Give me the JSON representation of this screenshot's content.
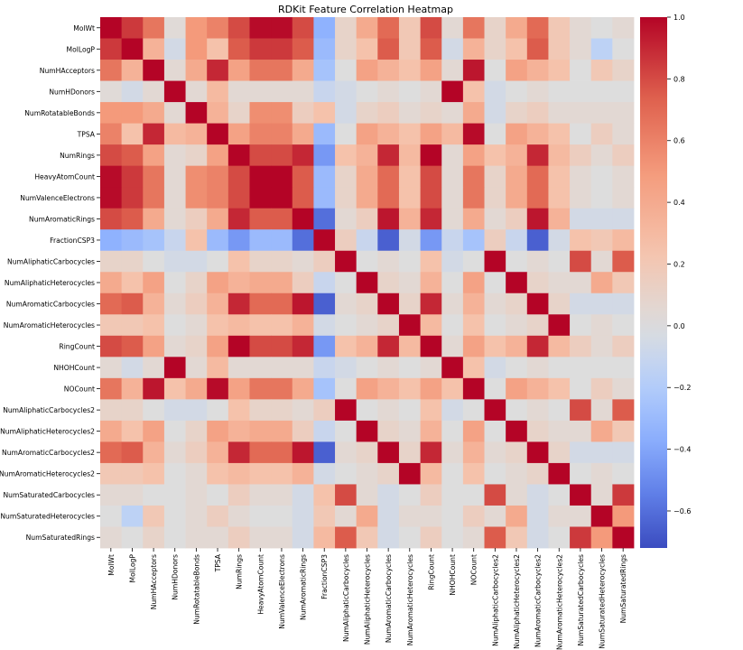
{
  "chart_data": {
    "type": "heatmap",
    "title": "RDKit Feature Correlation Heatmap",
    "colormap": "coolwarm",
    "vmin": -0.72,
    "vmax": 1.0,
    "colorbar_ticks": [
      "1.0",
      "0.8",
      "0.6",
      "0.4",
      "0.2",
      "0.0",
      "−0.2",
      "−0.4",
      "−0.6"
    ],
    "colorbar_tick_values": [
      1.0,
      0.8,
      0.6,
      0.4,
      0.2,
      0.0,
      -0.2,
      -0.4,
      -0.6
    ],
    "labels": [
      "MolWt",
      "MolLogP",
      "NumHAcceptors",
      "NumHDonors",
      "NumRotatableBonds",
      "TPSA",
      "NumRings",
      "HeavyAtomCount",
      "NumValenceElectrons",
      "NumAromaticRings",
      "FractionCSP3",
      "NumAliphaticCarbocycles",
      "NumAliphaticHeterocycles",
      "NumAromaticCarbocycles",
      "NumAromaticHeterocycles",
      "RingCount",
      "NHOHCount",
      "NOCount",
      "NumAliphaticCarbocycles2",
      "NumAliphaticHeterocycles2",
      "NumAromaticCarbocycles2",
      "NumAromaticHeterocycles2",
      "NumSaturatedCarbocycles",
      "NumSaturatedHeterocycles",
      "NumSaturatedRings"
    ],
    "matrix": [
      [
        1.0,
        0.85,
        0.65,
        0.03,
        0.5,
        0.6,
        0.8,
        0.98,
        0.98,
        0.8,
        -0.35,
        0.1,
        0.4,
        0.7,
        0.2,
        0.8,
        0.05,
        0.65,
        0.1,
        0.4,
        0.7,
        0.2,
        0.05,
        0.0,
        0.05
      ],
      [
        0.85,
        1.0,
        0.35,
        -0.05,
        0.5,
        0.25,
        0.75,
        0.85,
        0.85,
        0.75,
        -0.3,
        0.1,
        0.25,
        0.75,
        0.2,
        0.75,
        -0.05,
        0.35,
        0.1,
        0.25,
        0.75,
        0.2,
        0.05,
        -0.15,
        0.0
      ],
      [
        0.65,
        0.35,
        1.0,
        0.05,
        0.4,
        0.9,
        0.45,
        0.65,
        0.65,
        0.4,
        -0.25,
        0.0,
        0.45,
        0.35,
        0.25,
        0.45,
        0.05,
        0.95,
        0.0,
        0.45,
        0.35,
        0.25,
        0.0,
        0.2,
        0.1
      ],
      [
        0.03,
        -0.05,
        0.05,
        1.0,
        0.05,
        0.3,
        0.05,
        0.05,
        0.05,
        0.05,
        -0.1,
        -0.05,
        0.0,
        0.05,
        0.0,
        0.05,
        1.0,
        0.25,
        -0.05,
        0.0,
        0.05,
        0.0,
        0.0,
        0.0,
        0.0
      ],
      [
        0.5,
        0.5,
        0.4,
        0.05,
        1.0,
        0.35,
        0.1,
        0.55,
        0.55,
        0.15,
        0.25,
        -0.05,
        0.1,
        0.15,
        0.05,
        0.1,
        0.05,
        0.4,
        -0.05,
        0.1,
        0.15,
        0.05,
        0.05,
        0.05,
        0.05
      ],
      [
        0.6,
        0.25,
        0.9,
        0.3,
        0.35,
        1.0,
        0.45,
        0.6,
        0.6,
        0.4,
        -0.3,
        0.0,
        0.45,
        0.35,
        0.25,
        0.45,
        0.3,
        0.98,
        0.0,
        0.45,
        0.35,
        0.25,
        0.0,
        0.15,
        0.05
      ],
      [
        0.8,
        0.75,
        0.45,
        0.05,
        0.1,
        0.45,
        1.0,
        0.8,
        0.8,
        0.9,
        -0.45,
        0.25,
        0.35,
        0.9,
        0.3,
        1.0,
        0.05,
        0.45,
        0.25,
        0.35,
        0.9,
        0.3,
        0.15,
        0.05,
        0.15
      ],
      [
        0.98,
        0.85,
        0.65,
        0.05,
        0.55,
        0.6,
        0.8,
        1.0,
        1.0,
        0.75,
        -0.3,
        0.1,
        0.4,
        0.7,
        0.25,
        0.8,
        0.05,
        0.65,
        0.1,
        0.4,
        0.7,
        0.25,
        0.05,
        0.0,
        0.05
      ],
      [
        0.98,
        0.85,
        0.65,
        0.05,
        0.55,
        0.6,
        0.8,
        1.0,
        1.0,
        0.75,
        -0.3,
        0.1,
        0.4,
        0.7,
        0.25,
        0.8,
        0.05,
        0.65,
        0.1,
        0.4,
        0.7,
        0.25,
        0.05,
        0.0,
        0.05
      ],
      [
        0.8,
        0.75,
        0.4,
        0.05,
        0.15,
        0.4,
        0.9,
        0.75,
        0.75,
        1.0,
        -0.6,
        0.05,
        0.15,
        0.95,
        0.35,
        0.9,
        0.05,
        0.4,
        0.05,
        0.15,
        0.95,
        0.35,
        -0.05,
        -0.05,
        -0.05
      ],
      [
        -0.35,
        -0.3,
        -0.25,
        -0.1,
        0.25,
        -0.3,
        -0.45,
        -0.3,
        -0.3,
        -0.6,
        1.0,
        0.15,
        -0.1,
        -0.65,
        -0.05,
        -0.45,
        -0.1,
        -0.25,
        0.15,
        -0.1,
        -0.65,
        -0.05,
        0.25,
        0.2,
        0.3
      ],
      [
        0.1,
        0.1,
        0.0,
        -0.05,
        -0.05,
        0.0,
        0.25,
        0.1,
        0.1,
        0.05,
        0.15,
        1.0,
        0.0,
        0.05,
        0.0,
        0.25,
        -0.05,
        0.0,
        1.0,
        0.0,
        0.05,
        0.0,
        0.8,
        0.05,
        0.75
      ],
      [
        0.4,
        0.25,
        0.45,
        0.0,
        0.1,
        0.45,
        0.35,
        0.4,
        0.4,
        0.15,
        -0.1,
        0.0,
        1.0,
        0.1,
        0.05,
        0.35,
        0.0,
        0.45,
        0.0,
        1.0,
        0.1,
        0.05,
        0.05,
        0.4,
        0.2
      ],
      [
        0.7,
        0.75,
        0.35,
        0.05,
        0.15,
        0.35,
        0.9,
        0.7,
        0.7,
        0.95,
        -0.65,
        0.05,
        0.1,
        1.0,
        0.1,
        0.9,
        0.05,
        0.35,
        0.05,
        0.1,
        1.0,
        0.1,
        -0.05,
        -0.05,
        -0.05
      ],
      [
        0.2,
        0.2,
        0.25,
        0.0,
        0.05,
        0.25,
        0.3,
        0.25,
        0.25,
        0.35,
        -0.05,
        0.0,
        0.05,
        0.1,
        1.0,
        0.3,
        0.0,
        0.25,
        0.0,
        0.05,
        0.1,
        1.0,
        0.0,
        0.05,
        0.0
      ],
      [
        0.8,
        0.75,
        0.45,
        0.05,
        0.1,
        0.45,
        1.0,
        0.8,
        0.8,
        0.9,
        -0.45,
        0.25,
        0.35,
        0.9,
        0.3,
        1.0,
        0.05,
        0.45,
        0.25,
        0.35,
        0.9,
        0.3,
        0.15,
        0.05,
        0.15
      ],
      [
        0.05,
        -0.05,
        0.05,
        1.0,
        0.05,
        0.3,
        0.05,
        0.05,
        0.05,
        0.05,
        -0.1,
        -0.05,
        0.0,
        0.05,
        0.0,
        0.05,
        1.0,
        0.25,
        -0.05,
        0.0,
        0.05,
        0.0,
        0.0,
        0.0,
        0.0
      ],
      [
        0.65,
        0.35,
        0.95,
        0.25,
        0.4,
        0.98,
        0.45,
        0.65,
        0.65,
        0.4,
        -0.25,
        0.0,
        0.45,
        0.35,
        0.25,
        0.45,
        0.25,
        1.0,
        0.0,
        0.45,
        0.35,
        0.25,
        0.0,
        0.15,
        0.05
      ],
      [
        0.1,
        0.1,
        0.0,
        -0.05,
        -0.05,
        0.0,
        0.25,
        0.1,
        0.1,
        0.05,
        0.15,
        1.0,
        0.0,
        0.05,
        0.0,
        0.25,
        -0.05,
        0.0,
        1.0,
        0.0,
        0.05,
        0.0,
        0.8,
        0.05,
        0.75
      ],
      [
        0.4,
        0.25,
        0.45,
        0.0,
        0.1,
        0.45,
        0.35,
        0.4,
        0.4,
        0.15,
        -0.1,
        0.0,
        1.0,
        0.1,
        0.05,
        0.35,
        0.0,
        0.45,
        0.0,
        1.0,
        0.1,
        0.05,
        0.05,
        0.4,
        0.2
      ],
      [
        0.7,
        0.75,
        0.35,
        0.05,
        0.15,
        0.35,
        0.9,
        0.7,
        0.7,
        0.95,
        -0.65,
        0.05,
        0.1,
        1.0,
        0.1,
        0.9,
        0.05,
        0.35,
        0.05,
        0.1,
        1.0,
        0.1,
        -0.05,
        -0.05,
        -0.05
      ],
      [
        0.2,
        0.2,
        0.25,
        0.0,
        0.05,
        0.25,
        0.3,
        0.25,
        0.25,
        0.35,
        -0.05,
        0.0,
        0.05,
        0.1,
        1.0,
        0.3,
        0.0,
        0.25,
        0.0,
        0.05,
        0.1,
        1.0,
        0.0,
        0.05,
        0.0
      ],
      [
        0.05,
        0.05,
        0.0,
        0.0,
        0.05,
        0.0,
        0.15,
        0.05,
        0.05,
        -0.05,
        0.25,
        0.8,
        0.05,
        -0.05,
        0.0,
        0.15,
        0.0,
        0.0,
        0.8,
        0.05,
        -0.05,
        0.0,
        1.0,
        0.05,
        0.85
      ],
      [
        0.0,
        -0.15,
        0.2,
        0.0,
        0.05,
        0.15,
        0.05,
        0.0,
        0.0,
        -0.05,
        0.2,
        0.05,
        0.4,
        -0.05,
        0.05,
        0.05,
        0.0,
        0.15,
        0.05,
        0.4,
        -0.05,
        0.05,
        0.05,
        1.0,
        0.5
      ],
      [
        0.05,
        0.0,
        0.1,
        0.0,
        0.05,
        0.05,
        0.15,
        0.05,
        0.05,
        -0.05,
        0.3,
        0.75,
        0.2,
        -0.05,
        0.0,
        0.15,
        0.0,
        0.05,
        0.75,
        0.2,
        -0.05,
        0.0,
        0.85,
        0.5,
        1.0
      ]
    ]
  }
}
